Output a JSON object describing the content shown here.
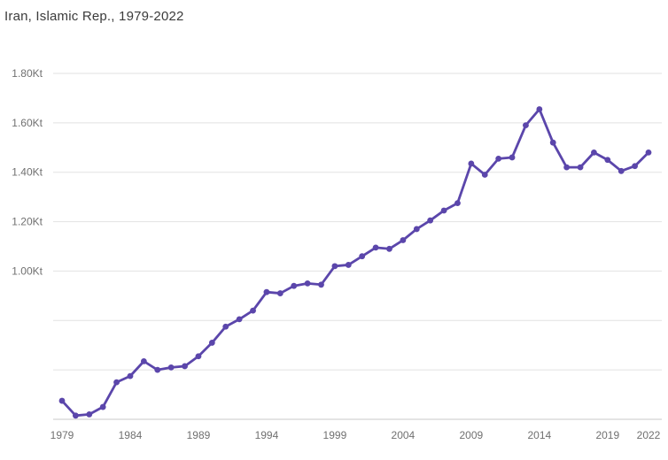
{
  "header": {
    "title": "Iran, Islamic Rep., 1979-2022"
  },
  "colors": {
    "line": "#5b46ab",
    "marker": "#5b46ab",
    "grid": "#e2e2e2",
    "axis": "#c9c9c9",
    "tick_text": "#707070",
    "title_text": "#3b3b3b",
    "background": "#ffffff"
  },
  "chart_data": {
    "type": "line",
    "title": "Iran, Islamic Rep., 1979-2022",
    "series_name": "Iran, Islamic Rep.",
    "unit": "Kt",
    "grid": "horizontal-only",
    "legend": "none",
    "marker": "circle",
    "xlim": [
      1979,
      2022
    ],
    "ylim": [
      0.4,
      1.8
    ],
    "x": [
      1979,
      1980,
      1981,
      1982,
      1983,
      1984,
      1985,
      1986,
      1987,
      1988,
      1989,
      1990,
      1991,
      1992,
      1993,
      1994,
      1995,
      1996,
      1997,
      1998,
      1999,
      2000,
      2001,
      2002,
      2003,
      2004,
      2005,
      2006,
      2007,
      2008,
      2009,
      2010,
      2011,
      2012,
      2013,
      2014,
      2015,
      2016,
      2017,
      2018,
      2019,
      2020,
      2021,
      2022
    ],
    "values": [
      0.475,
      0.415,
      0.42,
      0.45,
      0.55,
      0.575,
      0.635,
      0.6,
      0.61,
      0.615,
      0.655,
      0.71,
      0.775,
      0.805,
      0.84,
      0.915,
      0.91,
      0.94,
      0.95,
      0.945,
      1.02,
      1.025,
      1.06,
      1.095,
      1.09,
      1.125,
      1.17,
      1.205,
      1.245,
      1.275,
      1.435,
      1.39,
      1.455,
      1.46,
      1.59,
      1.655,
      1.52,
      1.42,
      1.42,
      1.48,
      1.45,
      1.405,
      1.425,
      1.48
    ],
    "y_gridline_values": [
      1.8,
      1.6,
      1.4,
      1.2,
      1.0,
      0.8,
      0.6
    ],
    "y_ticks": [
      {
        "value": 1.8,
        "label": "1.80Kt"
      },
      {
        "value": 1.6,
        "label": "1.60Kt"
      },
      {
        "value": 1.4,
        "label": "1.40Kt"
      },
      {
        "value": 1.2,
        "label": "1.20Kt"
      },
      {
        "value": 1.0,
        "label": "1.00Kt"
      }
    ],
    "x_ticks": [
      {
        "value": 1979,
        "label": "1979"
      },
      {
        "value": 1984,
        "label": "1984"
      },
      {
        "value": 1989,
        "label": "1989"
      },
      {
        "value": 1994,
        "label": "1994"
      },
      {
        "value": 1999,
        "label": "1999"
      },
      {
        "value": 2004,
        "label": "2004"
      },
      {
        "value": 2009,
        "label": "2009"
      },
      {
        "value": 2014,
        "label": "2014"
      },
      {
        "value": 2019,
        "label": "2019"
      },
      {
        "value": 2022,
        "label": "2022"
      }
    ]
  }
}
